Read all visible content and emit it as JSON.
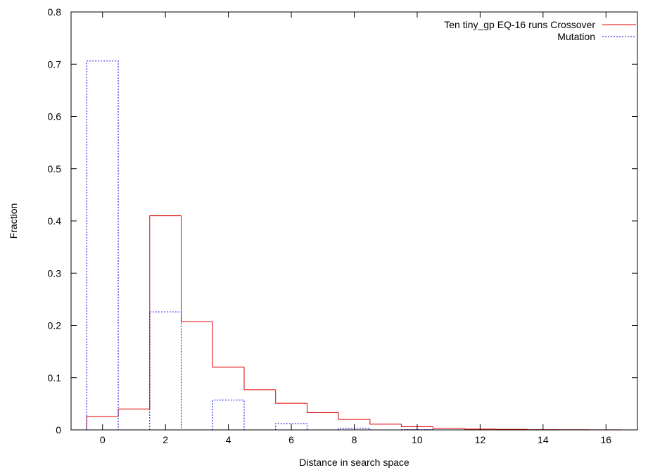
{
  "chart_data": {
    "type": "line",
    "style": "histogram-steps",
    "title": "",
    "xlabel": "Distance in search space",
    "ylabel": "Fraction",
    "xlim": [
      -1,
      17
    ],
    "ylim": [
      0,
      0.8
    ],
    "x_ticks": [
      0,
      2,
      4,
      6,
      8,
      10,
      12,
      14,
      16
    ],
    "x_tick_labels": [
      "0",
      "2",
      "4",
      "6",
      "8",
      "10",
      "12",
      "14",
      "16"
    ],
    "y_ticks": [
      0,
      0.1,
      0.2,
      0.3,
      0.4,
      0.5,
      0.6,
      0.7,
      0.8
    ],
    "y_tick_labels": [
      "0",
      "0.1",
      "0.2",
      "0.3",
      "0.4",
      "0.5",
      "0.6",
      "0.7",
      "0.8"
    ],
    "grid": false,
    "legend_position": "top-right",
    "x": [
      0,
      1,
      2,
      3,
      4,
      5,
      6,
      7,
      8,
      9,
      10,
      11,
      12,
      13,
      14,
      15,
      16
    ],
    "series": [
      {
        "name": "Ten tiny_gp EQ-16 runs Crossover",
        "color": "#e00000",
        "dash": "solid",
        "values": [
          0.026,
          0.04,
          0.41,
          0.207,
          0.12,
          0.077,
          0.051,
          0.033,
          0.02,
          0.011,
          0.006,
          0.003,
          0.0015,
          0.001,
          0.0005,
          0.0003,
          0.0001
        ]
      },
      {
        "name": "Mutation",
        "color": "#0000e0",
        "dash": "dotted",
        "values": [
          0.706,
          0.0,
          0.226,
          0.0,
          0.057,
          0.0,
          0.012,
          0.0,
          0.003,
          0.0,
          0.0005,
          0.0,
          0.0,
          0.0,
          0.0,
          0.0,
          0.0
        ]
      }
    ]
  }
}
